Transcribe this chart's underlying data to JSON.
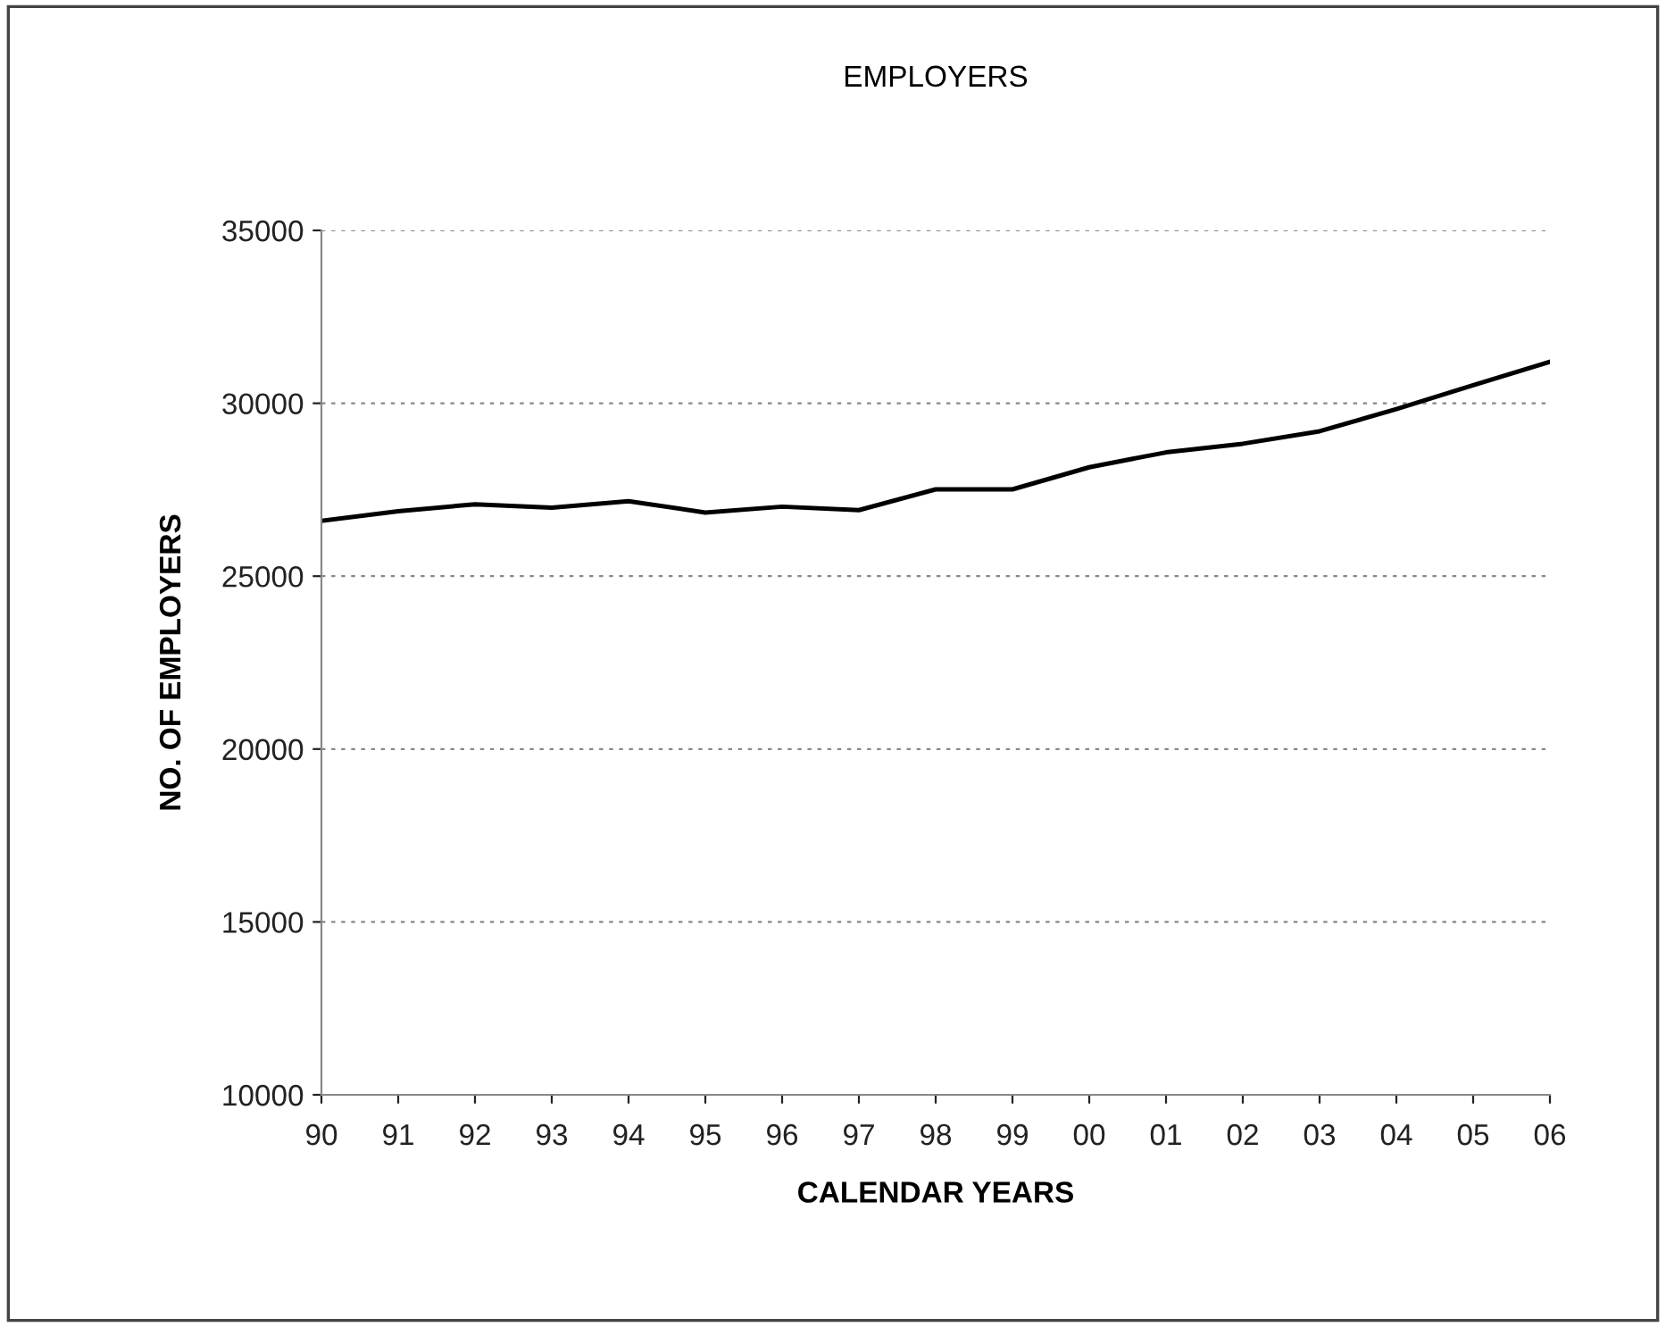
{
  "chart_data": {
    "type": "line",
    "title": "EMPLOYERS",
    "xlabel": "CALENDAR YEARS",
    "ylabel": "NO. OF EMPLOYERS",
    "categories": [
      "90",
      "91",
      "92",
      "93",
      "94",
      "95",
      "96",
      "97",
      "98",
      "99",
      "00",
      "01",
      "02",
      "03",
      "04",
      "05",
      "06"
    ],
    "series": [
      {
        "color": "#000000",
        "values": [
          26600,
          26880,
          27080,
          26980,
          27170,
          26840,
          27010,
          26910,
          27510,
          27510,
          28150,
          28580,
          28830,
          29190,
          29830,
          30520,
          31200
        ]
      }
    ],
    "ylim": [
      10000,
      35000
    ],
    "yticks": [
      10000,
      15000,
      20000,
      25000,
      30000,
      35000
    ],
    "grid": "y",
    "legend": false,
    "marker": "none",
    "line_style": "solid"
  }
}
